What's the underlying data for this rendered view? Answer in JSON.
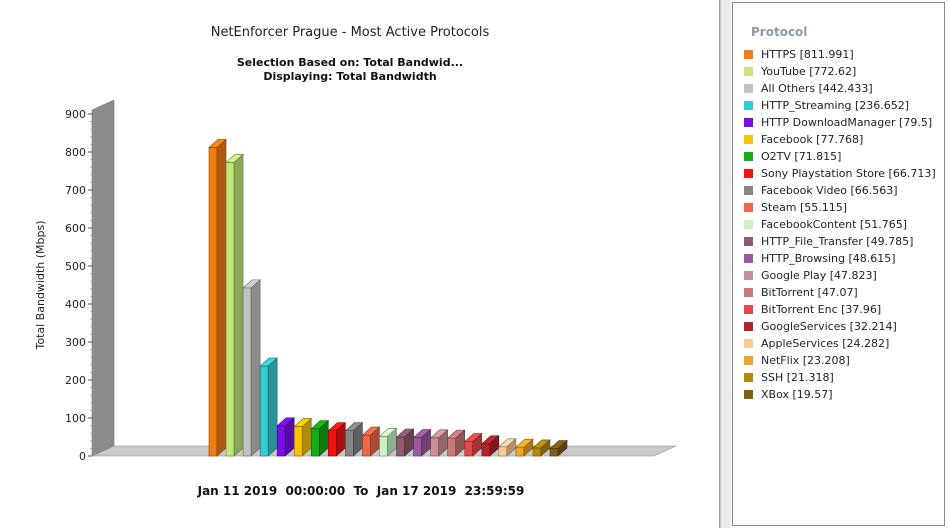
{
  "chart_data": {
    "type": "bar",
    "title": "NetEnforcer Prague - Most Active Protocols",
    "subtitle_lines": [
      "Selection Based on: Total Bandwid...",
      "Displaying: Total Bandwidth"
    ],
    "ylabel": "Total Bandwidth (Mbps)",
    "xlabel": "Jan 11 2019  00:00:00  To  Jan 17 2019  23:59:59",
    "ylim": [
      0,
      900
    ],
    "yticks": [
      "0",
      "100",
      "200",
      "300",
      "400",
      "500",
      "600",
      "700",
      "800",
      "900"
    ],
    "legend_title": "Protocol",
    "legend_position": "right",
    "style": "3d",
    "series": [
      {
        "name": "HTTPS",
        "value": 811.991,
        "color": "#f07d12"
      },
      {
        "name": "YouTube",
        "value": 772.62,
        "color": "#c3e778"
      },
      {
        "name": "All Others",
        "value": 442.433,
        "color": "#c2c2c2"
      },
      {
        "name": "HTTP_Streaming",
        "value": 236.652,
        "color": "#36cbd2"
      },
      {
        "name": "HTTP DownloadManager",
        "value": 79.5,
        "color": "#7a10e6"
      },
      {
        "name": "Facebook",
        "value": 77.768,
        "color": "#f6c20a"
      },
      {
        "name": "O2TV",
        "value": 71.815,
        "color": "#17ab17"
      },
      {
        "name": "Sony Playstation Store",
        "value": 66.713,
        "color": "#ee1414"
      },
      {
        "name": "Facebook Video",
        "value": 66.563,
        "color": "#858585"
      },
      {
        "name": "Steam",
        "value": 55.115,
        "color": "#ee6848"
      },
      {
        "name": "FacebookContent",
        "value": 51.765,
        "color": "#c9f2c4"
      },
      {
        "name": "HTTP_File_Transfer",
        "value": 49.785,
        "color": "#8d5b6e"
      },
      {
        "name": "HTTP_Browsing",
        "value": 48.615,
        "color": "#9b5aa0"
      },
      {
        "name": "Google Play",
        "value": 47.823,
        "color": "#c99098"
      },
      {
        "name": "BitTorrent",
        "value": 47.07,
        "color": "#c87878"
      },
      {
        "name": "BitTorrent Enc",
        "value": 37.96,
        "color": "#e24848"
      },
      {
        "name": "GoogleServices",
        "value": 32.214,
        "color": "#b4222a"
      },
      {
        "name": "AppleServices",
        "value": 24.282,
        "color": "#f9cc94"
      },
      {
        "name": "NetFlix",
        "value": 23.208,
        "color": "#f0a626"
      },
      {
        "name": "SSH",
        "value": 21.318,
        "color": "#b38a0a"
      },
      {
        "name": "XBox",
        "value": 19.57,
        "color": "#805d14"
      }
    ]
  }
}
